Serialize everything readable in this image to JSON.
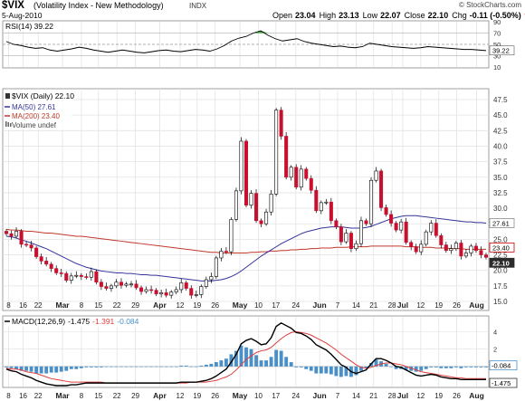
{
  "header": {
    "ticker": "$VIX",
    "name": "(Volatility Index - New Methodology)",
    "exchange": "INDX",
    "watermark": "© StockCharts.com",
    "date": "5-Aug-2010",
    "open_label": "Open",
    "open": "23.04",
    "high_label": "High",
    "high": "23.13",
    "low_label": "Low",
    "low": "22.07",
    "close_label": "Close",
    "close": "22.10",
    "chg_label": "Chg",
    "chg": "-0.11 (-0.50%)",
    "chg_marker": "▼"
  },
  "colors": {
    "up": "#ffffff",
    "down": "#c8102e",
    "ma50": "#34349a",
    "ma200": "#c0392b",
    "macd": "#000000",
    "signal": "#e03c3c",
    "histogram": "#4a90c8",
    "tag_dark": "#2b2b2b",
    "tag_red": "#cc0000",
    "tag_gray": "#8c8c8c",
    "tag_blue": "#4a90c8"
  },
  "chart_data": [
    {
      "type": "line",
      "panel": "rsi",
      "legend": "RSI(14) 39.22",
      "y_ticks": [
        "10",
        "30",
        "50",
        "70",
        "90"
      ],
      "last_value_tag": "39.22",
      "ylim": [
        10,
        90
      ],
      "values": [
        55,
        50,
        48,
        45,
        43,
        44,
        40,
        38,
        40,
        42,
        45,
        43,
        40,
        38,
        36,
        38,
        40,
        38,
        36,
        35,
        37,
        39,
        40,
        38,
        37,
        39,
        41,
        40,
        38,
        42,
        48,
        56,
        61,
        64,
        70,
        74,
        66,
        60,
        56,
        58,
        60,
        55,
        52,
        50,
        48,
        46,
        47,
        45,
        44,
        46,
        52,
        50,
        48,
        46,
        45,
        44,
        43,
        44,
        46,
        45,
        44,
        43,
        42,
        41,
        41,
        40,
        39
      ]
    },
    {
      "type": "candlestick",
      "panel": "price",
      "legend": [
        "$VIX (Daily) 22.10",
        "MA(50) 27.61",
        "MA(200) 23.40",
        "Volume undef"
      ],
      "y_ticks": [
        "15.0",
        "17.5",
        "20.0",
        "22.5",
        "25.0",
        "27.5",
        "30.0",
        "32.5",
        "35.0",
        "37.5",
        "40.0",
        "42.5",
        "45.0",
        "47.5"
      ],
      "x_labels": [
        "8",
        "16",
        "22",
        "Mar",
        "8",
        "15",
        "22",
        "29",
        "Apr",
        "12",
        "19",
        "26",
        "May",
        "10",
        "17",
        "24",
        "Jun",
        "7",
        "14",
        "21",
        "28",
        "Jul",
        "12",
        "19",
        "26",
        "Aug"
      ],
      "ylim": [
        15,
        47.5
      ],
      "tags": [
        {
          "label": "27.61",
          "value": 27.61,
          "series": "MA(50)"
        },
        {
          "label": "23.40",
          "value": 23.4,
          "series": "MA(200)"
        },
        {
          "label": "22.10",
          "value": 22.1,
          "series": "Close"
        }
      ],
      "close": [
        25.9,
        25.5,
        26.3,
        24.2,
        24.1,
        23.6,
        22.2,
        21.5,
        21.0,
        20.3,
        19.6,
        19.5,
        18.4,
        19.1,
        19.2,
        19.0,
        18.9,
        19.8,
        18.1,
        17.4,
        17.1,
        17.5,
        18.1,
        17.6,
        17.8,
        17.8,
        17.2,
        16.6,
        16.9,
        16.8,
        16.2,
        16.4,
        16.0,
        16.5,
        16.9,
        18.0,
        17.1,
        16.0,
        16.1,
        17.4,
        18.5,
        19.0,
        22.0,
        23.1,
        23.0,
        28.2,
        32.8,
        40.8,
        30.5,
        32.4,
        28.0,
        27.5,
        29.4,
        32.3,
        45.8,
        41.6,
        35.0,
        36.6,
        33.4,
        36.3,
        34.8,
        32.9,
        29.6,
        30.9,
        31.0,
        28.0,
        27.0,
        24.6,
        26.0,
        23.5,
        24.3,
        28.0,
        27.5,
        34.5,
        36.0,
        30.1,
        29.0,
        27.6,
        26.5,
        27.8,
        24.5,
        23.8,
        23.0,
        24.2,
        26.2,
        27.6,
        25.6,
        24.1,
        23.2,
        23.5,
        24.4,
        22.3,
        22.8,
        23.9,
        23.2,
        22.5,
        22.1
      ],
      "ma50": [
        25.5,
        25.4,
        25.2,
        24.9,
        24.7,
        24.4,
        24.1,
        23.8,
        23.5,
        23.1,
        22.7,
        22.3,
        21.9,
        21.5,
        21.1,
        20.8,
        20.5,
        20.3,
        20.1,
        19.9,
        19.8,
        19.7,
        19.6,
        19.6,
        19.5,
        19.5,
        19.4,
        19.3,
        19.3,
        19.2,
        19.2,
        19.1,
        19.0,
        18.9,
        18.8,
        18.7,
        18.6,
        18.5,
        18.4,
        18.3,
        18.3,
        18.3,
        18.4,
        18.5,
        18.7,
        19.0,
        19.4,
        19.9,
        20.5,
        21.1,
        21.7,
        22.3,
        22.8,
        23.3,
        23.8,
        24.3,
        24.7,
        25.1,
        25.5,
        25.9,
        26.2,
        26.4,
        26.6,
        26.8,
        26.9,
        27.0,
        27.0,
        27.0,
        26.9,
        26.8,
        26.8,
        26.8,
        26.9,
        27.1,
        27.4,
        27.7,
        28.0,
        28.3,
        28.5,
        28.7,
        28.8,
        28.8,
        28.8,
        28.7,
        28.6,
        28.5,
        28.4,
        28.3,
        28.2,
        28.1,
        28.0,
        27.9,
        27.8,
        27.8,
        27.7,
        27.7,
        27.6
      ],
      "ma200": [
        26.6,
        26.5,
        26.5,
        26.4,
        26.3,
        26.3,
        26.2,
        26.1,
        26.0,
        26.0,
        25.9,
        25.8,
        25.7,
        25.6,
        25.5,
        25.5,
        25.4,
        25.3,
        25.2,
        25.1,
        25.0,
        24.9,
        24.8,
        24.7,
        24.6,
        24.5,
        24.4,
        24.3,
        24.2,
        24.1,
        24.0,
        23.9,
        23.8,
        23.7,
        23.6,
        23.5,
        23.4,
        23.3,
        23.2,
        23.1,
        23.0,
        22.9,
        22.9,
        22.8,
        22.8,
        22.8,
        22.8,
        22.8,
        22.8,
        22.9,
        22.9,
        23.0,
        23.0,
        23.1,
        23.1,
        23.2,
        23.2,
        23.3,
        23.3,
        23.4,
        23.4,
        23.5,
        23.5,
        23.6,
        23.6,
        23.6,
        23.7,
        23.7,
        23.7,
        23.8,
        23.8,
        23.8,
        23.8,
        23.9,
        23.9,
        23.9,
        23.9,
        23.9,
        23.9,
        23.9,
        23.8,
        23.8,
        23.8,
        23.7,
        23.7,
        23.7,
        23.6,
        23.6,
        23.6,
        23.5,
        23.5,
        23.5,
        23.4,
        23.4,
        23.4,
        23.4,
        23.4
      ]
    },
    {
      "type": "line",
      "panel": "macd",
      "legend": {
        "label": "MACD(12,26,9)",
        "macd": "-1.475",
        "signal": "-1.391",
        "histogram": "-0.084"
      },
      "y_ticks": [
        "4",
        "2"
      ],
      "tags": [
        {
          "label": "-0.084",
          "value": -0.084,
          "series": "histogram"
        },
        {
          "label": "-1.475",
          "value": -1.475,
          "series": "MACD"
        }
      ],
      "x_labels": [
        "8",
        "16",
        "22",
        "Mar",
        "8",
        "15",
        "22",
        "29",
        "Apr",
        "12",
        "19",
        "26",
        "May",
        "10",
        "17",
        "24",
        "Jun",
        "7",
        "14",
        "21",
        "28",
        "Jul",
        "12",
        "19",
        "26",
        "Aug"
      ],
      "ylim": [
        -2.2,
        5.5
      ],
      "macd": [
        -0.3,
        -0.5,
        -0.6,
        -0.9,
        -1.1,
        -1.3,
        -1.6,
        -1.8,
        -2.0,
        -2.1,
        -2.2,
        -2.2,
        -2.2,
        -2.1,
        -2.1,
        -2.0,
        -1.9,
        -1.9,
        -1.9,
        -1.9,
        -1.9,
        -1.9,
        -1.9,
        -1.9,
        -1.9,
        -1.9,
        -1.9,
        -1.9,
        -1.9,
        -1.9,
        -1.9,
        -1.9,
        -1.9,
        -1.9,
        -1.9,
        -1.8,
        -1.8,
        -1.8,
        -1.8,
        -1.7,
        -1.6,
        -1.4,
        -1.1,
        -0.7,
        -0.3,
        0.5,
        1.4,
        2.6,
        3.0,
        3.2,
        2.9,
        2.5,
        2.6,
        3.3,
        4.6,
        5.0,
        4.7,
        4.4,
        3.9,
        3.8,
        3.5,
        3.1,
        2.5,
        2.2,
        1.9,
        1.4,
        0.8,
        0.2,
        -0.1,
        -0.6,
        -0.8,
        -0.6,
        -0.4,
        0.3,
        0.9,
        0.9,
        0.7,
        0.4,
        0.0,
        -0.1,
        -0.4,
        -0.7,
        -1.0,
        -1.1,
        -1.0,
        -0.9,
        -1.0,
        -1.2,
        -1.3,
        -1.4,
        -1.4,
        -1.5,
        -1.5,
        -1.5,
        -1.5,
        -1.5,
        -1.5
      ],
      "signal": [
        -0.2,
        -0.3,
        -0.3,
        -0.4,
        -0.6,
        -0.7,
        -0.8,
        -1.0,
        -1.2,
        -1.4,
        -1.5,
        -1.6,
        -1.7,
        -1.8,
        -1.8,
        -1.8,
        -1.8,
        -1.8,
        -1.8,
        -1.8,
        -1.9,
        -1.9,
        -1.9,
        -1.9,
        -1.9,
        -1.9,
        -1.9,
        -1.9,
        -1.9,
        -1.9,
        -1.9,
        -1.9,
        -1.9,
        -1.9,
        -1.9,
        -1.9,
        -1.9,
        -1.8,
        -1.8,
        -1.8,
        -1.8,
        -1.7,
        -1.6,
        -1.4,
        -1.2,
        -0.9,
        -0.4,
        0.2,
        0.8,
        1.2,
        1.6,
        1.8,
        1.9,
        2.2,
        2.7,
        3.2,
        3.6,
        3.9,
        4.0,
        3.9,
        3.8,
        3.6,
        3.3,
        3.0,
        2.7,
        2.3,
        1.9,
        1.4,
        1.0,
        0.6,
        0.2,
        -0.1,
        -0.2,
        -0.1,
        0.1,
        0.3,
        0.4,
        0.4,
        0.3,
        0.2,
        0.0,
        -0.2,
        -0.4,
        -0.6,
        -0.7,
        -0.8,
        -0.9,
        -1.0,
        -1.1,
        -1.2,
        -1.3,
        -1.3,
        -1.4,
        -1.4,
        -1.4,
        -1.4,
        -1.4
      ]
    }
  ]
}
